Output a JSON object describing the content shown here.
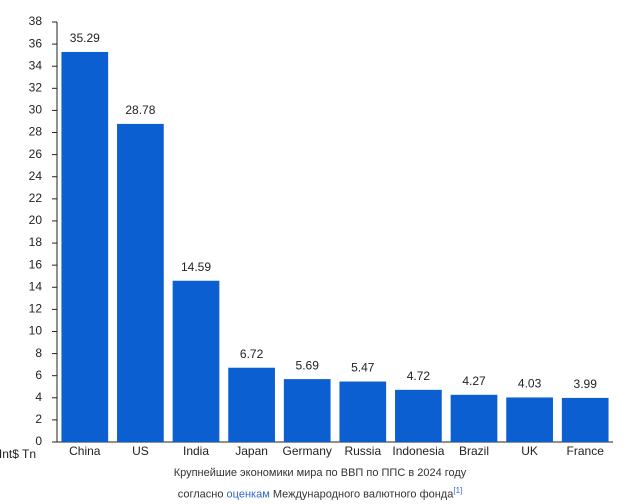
{
  "chart_data": {
    "type": "bar",
    "y_label": "Int$ Tn",
    "categories": [
      "China",
      "US",
      "India",
      "Japan",
      "Germany",
      "Russia",
      "Indonesia",
      "Brazil",
      "UK",
      "France"
    ],
    "values": [
      35.29,
      28.78,
      14.59,
      6.72,
      5.69,
      5.47,
      4.72,
      4.27,
      4.03,
      3.99
    ],
    "color": "#0b5fd1",
    "ylim": [
      0,
      38
    ],
    "yticks": [
      0,
      2,
      4,
      6,
      8,
      10,
      12,
      14,
      16,
      18,
      20,
      22,
      24,
      26,
      28,
      30,
      32,
      34,
      36,
      38
    ],
    "grid": false
  },
  "caption": {
    "line1": "Крупнейшие экономики мира по ВВП по ППС в 2024 году",
    "before_link": "согласно",
    "link": "оценкам",
    "after_link": "Международного валютного фонда",
    "ref": "[1]"
  }
}
